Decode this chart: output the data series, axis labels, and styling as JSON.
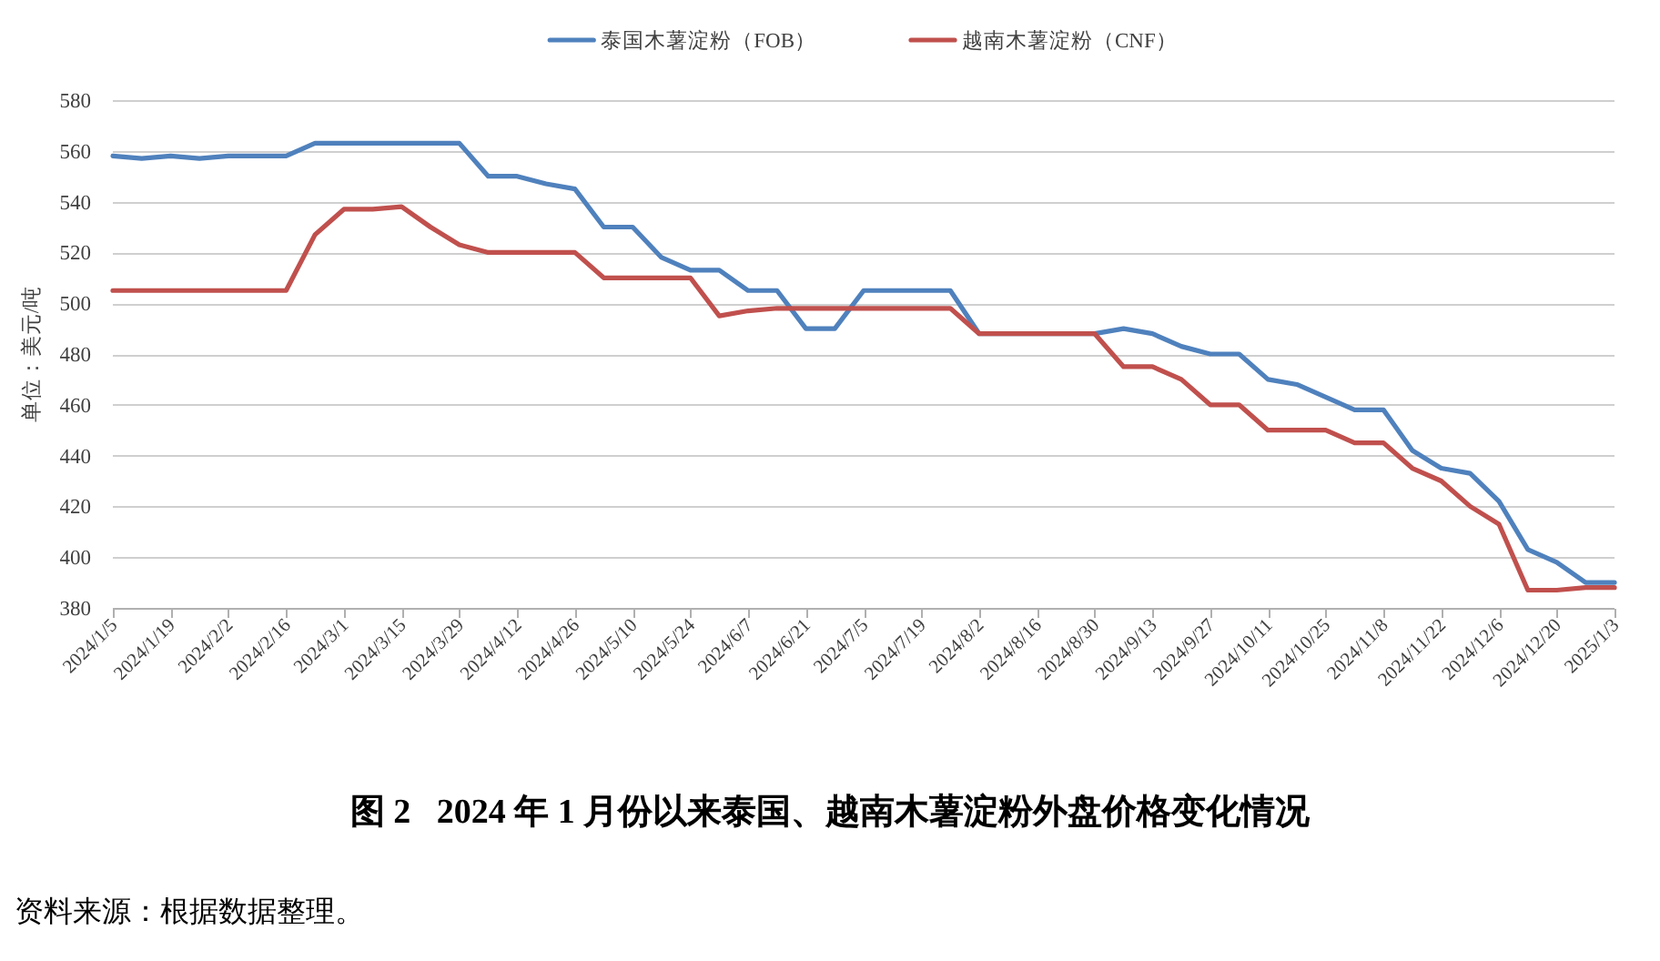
{
  "chart_data": {
    "type": "line",
    "title": "图 2   2024 年 1 月份以来泰国、越南木薯淀粉外盘价格变化情况",
    "ylabel": "单位：美元/吨",
    "annotations": [
      "资料来源：根据数据整理。"
    ],
    "categories": [
      "2024/1/5",
      null,
      "2024/1/19",
      null,
      "2024/2/2",
      null,
      "2024/2/16",
      null,
      "2024/3/1",
      null,
      "2024/3/15",
      null,
      "2024/3/29",
      null,
      "2024/4/12",
      null,
      "2024/4/26",
      null,
      "2024/5/10",
      null,
      "2024/5/24",
      null,
      "2024/6/7",
      null,
      "2024/6/21",
      null,
      "2024/7/5",
      null,
      "2024/7/19",
      null,
      "2024/8/2",
      null,
      "2024/8/16",
      null,
      "2024/8/30",
      null,
      "2024/9/13",
      null,
      "2024/9/27",
      null,
      "2024/10/11",
      null,
      "2024/10/25",
      null,
      "2024/11/8",
      null,
      "2024/11/22",
      null,
      "2024/12/6",
      null,
      "2024/12/20",
      null,
      "2025/1/3"
    ],
    "series": [
      {
        "name": "泰国木薯淀粉（FOB）",
        "color": "#4f81bd",
        "values": [
          558,
          557,
          558,
          557,
          558,
          558,
          558,
          563,
          563,
          563,
          563,
          563,
          563,
          550,
          550,
          547,
          545,
          530,
          530,
          518,
          513,
          513,
          505,
          505,
          490,
          490,
          505,
          505,
          505,
          505,
          488,
          488,
          488,
          488,
          488,
          490,
          488,
          483,
          480,
          480,
          470,
          468,
          463,
          458,
          458,
          442,
          435,
          433,
          422,
          403,
          398,
          390,
          390
        ]
      },
      {
        "name": "越南木薯淀粉（CNF）",
        "color": "#c0504d",
        "values": [
          505,
          505,
          505,
          505,
          505,
          505,
          505,
          527,
          537,
          537,
          538,
          530,
          523,
          520,
          520,
          520,
          520,
          510,
          510,
          510,
          510,
          495,
          497,
          498,
          498,
          498,
          498,
          498,
          498,
          498,
          488,
          488,
          488,
          488,
          488,
          475,
          475,
          470,
          460,
          460,
          450,
          450,
          450,
          445,
          445,
          435,
          430,
          420,
          413,
          387,
          387,
          388,
          388
        ]
      }
    ],
    "ylim": [
      380,
      580
    ],
    "yticks": [
      380,
      400,
      420,
      440,
      460,
      480,
      500,
      520,
      540,
      560,
      580
    ],
    "grid": "y",
    "legend": "top"
  }
}
